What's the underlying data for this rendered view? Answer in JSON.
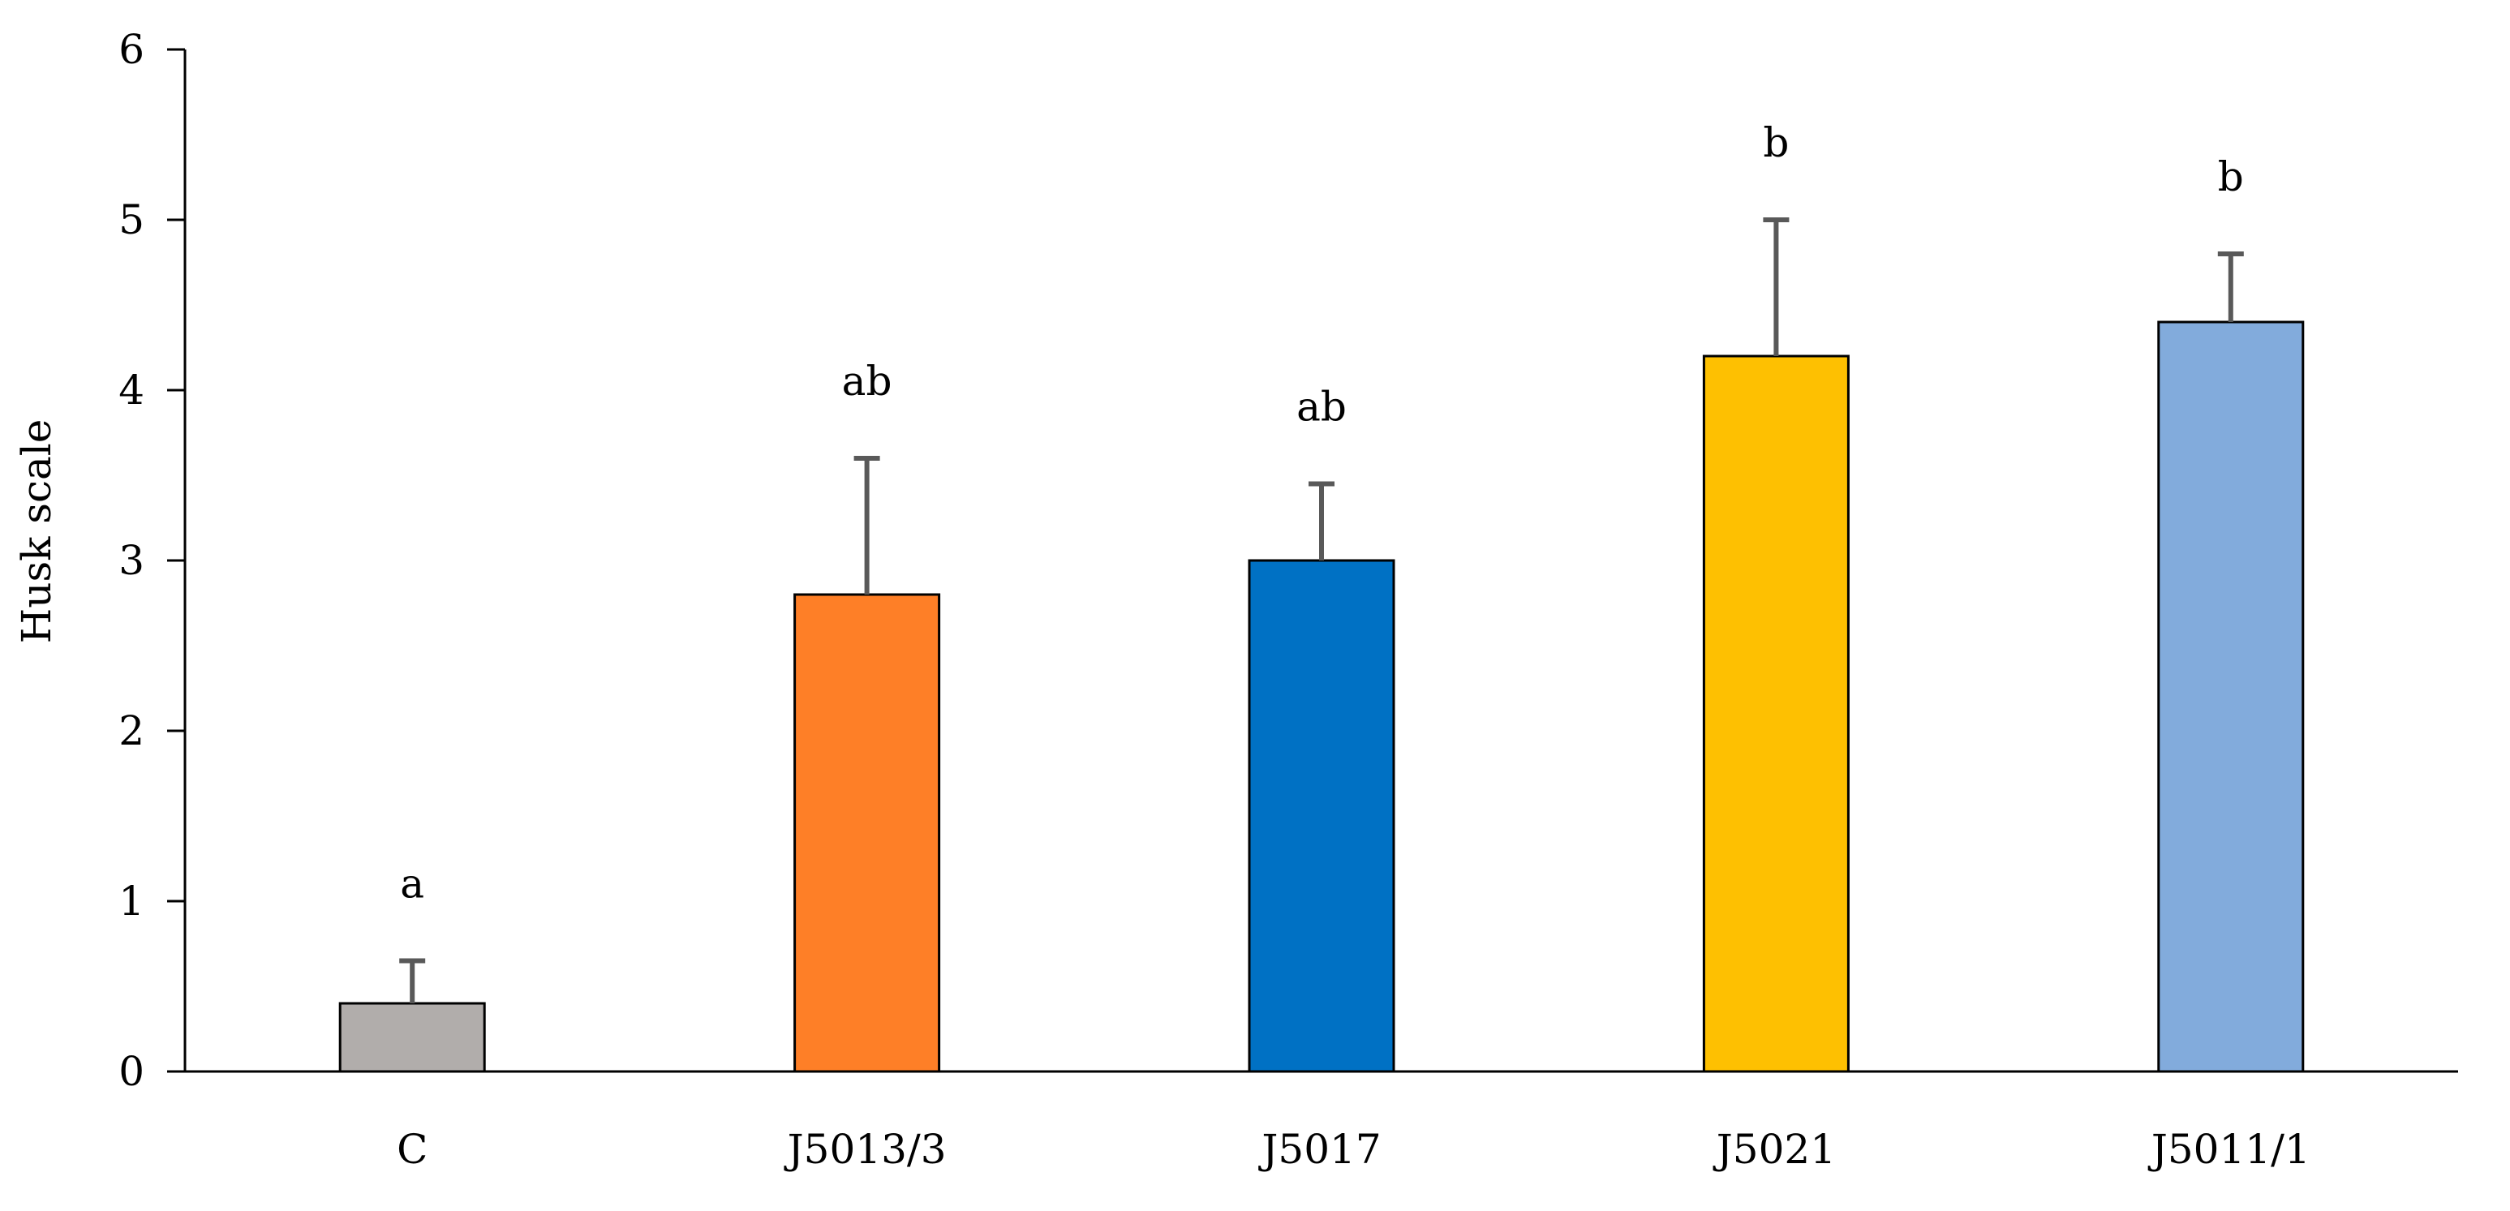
{
  "chart_data": {
    "type": "bar",
    "title": "",
    "xlabel": "",
    "ylabel": "Husk scale",
    "ylim": [
      0,
      6
    ],
    "yticks": [
      "0",
      "1",
      "2",
      "3",
      "4",
      "5",
      "6"
    ],
    "categories": [
      "C",
      "J5013/3",
      "J5017",
      "J5021",
      "J5011/1"
    ],
    "values": [
      0.4,
      2.8,
      3.0,
      4.2,
      4.4
    ],
    "error_upper": [
      0.65,
      3.6,
      3.45,
      5.0,
      4.8
    ],
    "significance": [
      "a",
      "ab",
      "ab",
      "b",
      "b"
    ],
    "colors": [
      "#b1adab",
      "#fe7f27",
      "#0071c4",
      "#fec001",
      "#82abdc"
    ],
    "grid": false,
    "legend": "none"
  }
}
